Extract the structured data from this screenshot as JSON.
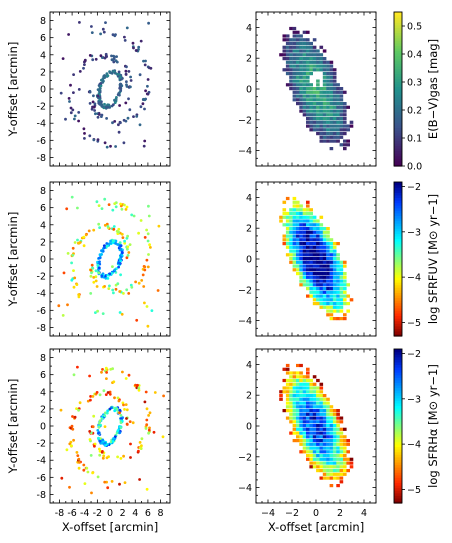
{
  "figure": {
    "ylabel_left": "Y-offset [arcmin]",
    "xlabel_left": "X-offset [arcmin]",
    "xlabel_right": "X-offset [arcmin]"
  },
  "chart_data": [
    {
      "type": "scatter",
      "panel": "row1-left",
      "description_tag": "E(B-V)gas map, wide field",
      "xlim": [
        -9.5,
        9.5
      ],
      "ylim": [
        -9,
        9
      ],
      "yticks": [
        -8,
        -6,
        -4,
        -2,
        0,
        2,
        4,
        6,
        8
      ],
      "xticks": [
        -8,
        -6,
        -4,
        -2,
        0,
        2,
        4,
        6,
        8
      ],
      "show_xticklabels": false,
      "colormap": "viridis",
      "clim": [
        0.0,
        0.55
      ]
    },
    {
      "type": "heatmap",
      "panel": "row1-right",
      "description_tag": "E(B-V)gas hexbin, inner",
      "xlim": [
        -5,
        5
      ],
      "ylim": [
        -5,
        5
      ],
      "yticks": [
        -4,
        -2,
        0,
        2,
        4
      ],
      "xticks": [
        -4,
        -2,
        0,
        2,
        4
      ],
      "show_xticklabels": false,
      "colormap": "viridis",
      "clim": [
        0.0,
        0.55
      ],
      "colorbar": {
        "label": "E(B−V)gas [mag]",
        "ticks": [
          0.0,
          0.1,
          0.2,
          0.3,
          0.4,
          0.5
        ],
        "tick_labels": [
          "0.0",
          "0.1",
          "0.2",
          "0.3",
          "0.4",
          "0.5"
        ]
      }
    },
    {
      "type": "scatter",
      "panel": "row2-left",
      "description_tag": "log SFR FUV, wide field",
      "xlim": [
        -9.5,
        9.5
      ],
      "ylim": [
        -9,
        9
      ],
      "yticks": [
        -8,
        -6,
        -4,
        -2,
        0,
        2,
        4,
        6,
        8
      ],
      "xticks": [
        -8,
        -6,
        -4,
        -2,
        0,
        2,
        4,
        6,
        8
      ],
      "show_xticklabels": false,
      "colormap": "jet_r",
      "clim": [
        -5.3,
        -1.9
      ]
    },
    {
      "type": "heatmap",
      "panel": "row2-right",
      "description_tag": "log SFR FUV hexbin, inner",
      "xlim": [
        -5,
        5
      ],
      "ylim": [
        -5,
        5
      ],
      "yticks": [
        -4,
        -2,
        0,
        2,
        4
      ],
      "xticks": [
        -4,
        -2,
        0,
        2,
        4
      ],
      "show_xticklabels": false,
      "colormap": "jet_r",
      "clim": [
        -5.3,
        -1.9
      ],
      "colorbar": {
        "label": "log SFRFUV [M⊙ yr−1]",
        "ticks": [
          -2,
          -3,
          -4,
          -5
        ],
        "tick_labels": [
          "−2",
          "−3",
          "−4",
          "−5"
        ]
      }
    },
    {
      "type": "scatter",
      "panel": "row3-left",
      "description_tag": "log SFR Halpha, wide field",
      "xlim": [
        -9.5,
        9.5
      ],
      "ylim": [
        -9,
        9
      ],
      "yticks": [
        -8,
        -6,
        -4,
        -2,
        0,
        2,
        4,
        6,
        8
      ],
      "xticks": [
        -8,
        -6,
        -4,
        -2,
        0,
        2,
        4,
        6,
        8
      ],
      "xtick_labels": [
        "-8",
        "-6",
        "-4",
        "-2",
        "0",
        "2",
        "4",
        "6",
        "8"
      ],
      "show_xticklabels": true,
      "colormap": "jet_r",
      "clim": [
        -5.3,
        -1.9
      ]
    },
    {
      "type": "heatmap",
      "panel": "row3-right",
      "description_tag": "log SFR Halpha hexbin, inner",
      "xlim": [
        -5,
        5
      ],
      "ylim": [
        -5,
        5
      ],
      "yticks": [
        -4,
        -2,
        0,
        2,
        4
      ],
      "xticks": [
        -4,
        -2,
        0,
        2,
        4
      ],
      "xtick_labels": [
        "−4",
        "−2",
        "0",
        "2",
        "4"
      ],
      "show_xticklabels": true,
      "colormap": "jet_r",
      "clim": [
        -5.3,
        -1.9
      ],
      "colorbar": {
        "label": "log SFRHα [M⊙ yr−1]",
        "ticks": [
          -2,
          -3,
          -4,
          -5
        ],
        "tick_labels": [
          "−2",
          "−3",
          "−4",
          "−5"
        ]
      }
    }
  ]
}
